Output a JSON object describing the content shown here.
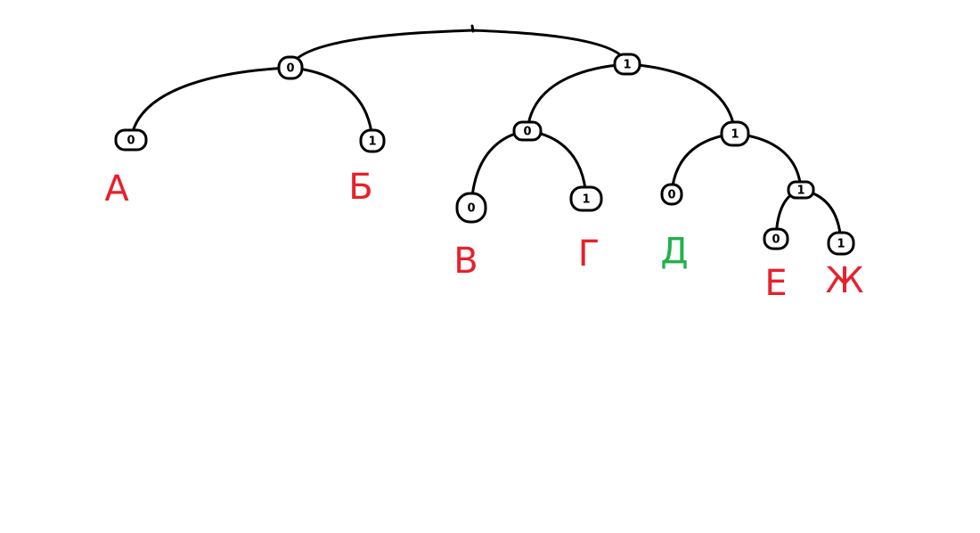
{
  "colors": {
    "ink": "#000000",
    "red_label": "#e8202a",
    "green_label": "#22b14c",
    "background": "#ffffff"
  },
  "tree": {
    "nodes": [
      {
        "id": "n0",
        "bit": "0"
      },
      {
        "id": "n1",
        "bit": "1"
      },
      {
        "id": "n00",
        "bit": "0",
        "leaf": "А",
        "leaf_color": "#e8202a"
      },
      {
        "id": "n01",
        "bit": "1",
        "leaf": "Б",
        "leaf_color": "#e8202a"
      },
      {
        "id": "n10",
        "bit": "0"
      },
      {
        "id": "n11",
        "bit": "1"
      },
      {
        "id": "n100",
        "bit": "0",
        "leaf": "В",
        "leaf_color": "#e8202a"
      },
      {
        "id": "n101",
        "bit": "1",
        "leaf": "Г",
        "leaf_color": "#e8202a"
      },
      {
        "id": "n110",
        "bit": "0",
        "leaf": "Д",
        "leaf_color": "#22b14c"
      },
      {
        "id": "n111",
        "bit": "1"
      },
      {
        "id": "n1110",
        "bit": "0",
        "leaf": "Е",
        "leaf_color": "#e8202a"
      },
      {
        "id": "n1111",
        "bit": "1",
        "leaf": "Ж",
        "leaf_color": "#e8202a"
      }
    ],
    "edges": [
      [
        "root",
        "n0"
      ],
      [
        "root",
        "n1"
      ],
      [
        "n0",
        "n00"
      ],
      [
        "n0",
        "n01"
      ],
      [
        "n1",
        "n10"
      ],
      [
        "n1",
        "n11"
      ],
      [
        "n10",
        "n100"
      ],
      [
        "n10",
        "n101"
      ],
      [
        "n11",
        "n110"
      ],
      [
        "n11",
        "n111"
      ],
      [
        "n111",
        "n1110"
      ],
      [
        "n111",
        "n1111"
      ]
    ]
  }
}
